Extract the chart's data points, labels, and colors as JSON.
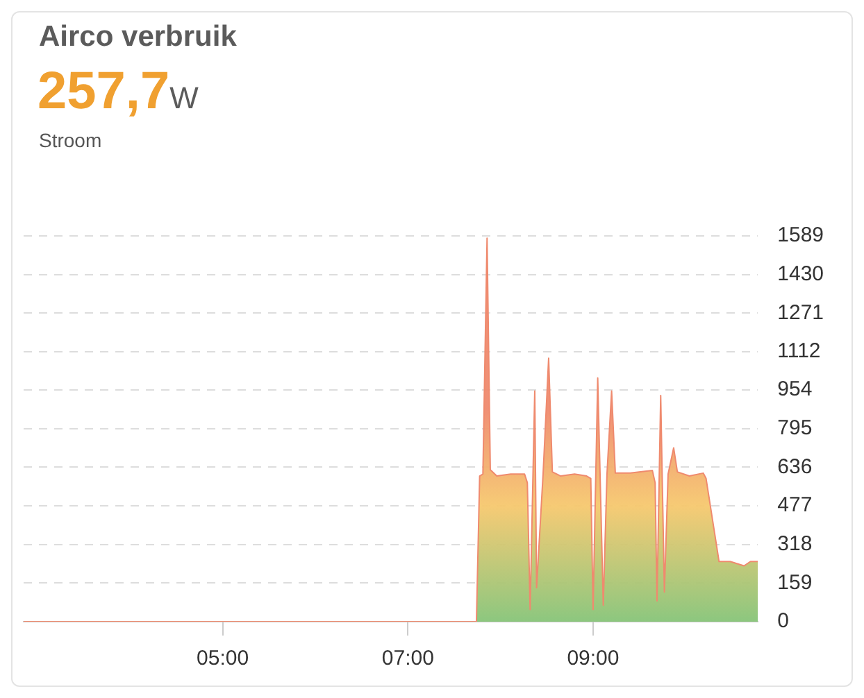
{
  "chart_data": {
    "type": "area",
    "title": "Airco verbruik",
    "subtitle": "257,7W",
    "annotations": [
      "Stroom"
    ],
    "x": [
      2.85,
      7.74,
      7.775,
      7.81,
      7.855,
      7.89,
      7.96,
      8.11,
      8.26,
      8.29,
      8.32,
      8.37,
      8.39,
      8.46,
      8.52,
      8.56,
      8.65,
      8.8,
      8.93,
      8.975,
      9.0,
      9.05,
      9.11,
      9.15,
      9.2,
      9.24,
      9.4,
      9.64,
      9.67,
      9.69,
      9.73,
      9.77,
      9.81,
      9.87,
      9.91,
      10.04,
      10.19,
      10.22,
      10.36,
      10.48,
      10.63,
      10.7,
      10.78
    ],
    "series": [
      {
        "color": "#ef8a6e",
        "values": [
          0,
          0,
          600,
          608,
          1580,
          626,
          600,
          608,
          608,
          572,
          50,
          950,
          140,
          608,
          1085,
          617,
          600,
          608,
          600,
          590,
          50,
          1004,
          68,
          608,
          950,
          612,
          612,
          623,
          572,
          86,
          932,
          122,
          608,
          716,
          617,
          600,
          612,
          590,
          248,
          248,
          230,
          248,
          248
        ]
      }
    ],
    "xlim": [
      2.85,
      10.78
    ],
    "xticks": [
      {
        "value": 5,
        "label": "05:00"
      },
      {
        "value": 7,
        "label": "07:00"
      },
      {
        "value": 9,
        "label": "09:00"
      }
    ],
    "ylim": [
      0,
      1589
    ],
    "yticks": [
      0,
      159,
      318,
      477,
      636,
      795,
      954,
      1112,
      1271,
      1430,
      1589
    ],
    "grid": "y"
  }
}
